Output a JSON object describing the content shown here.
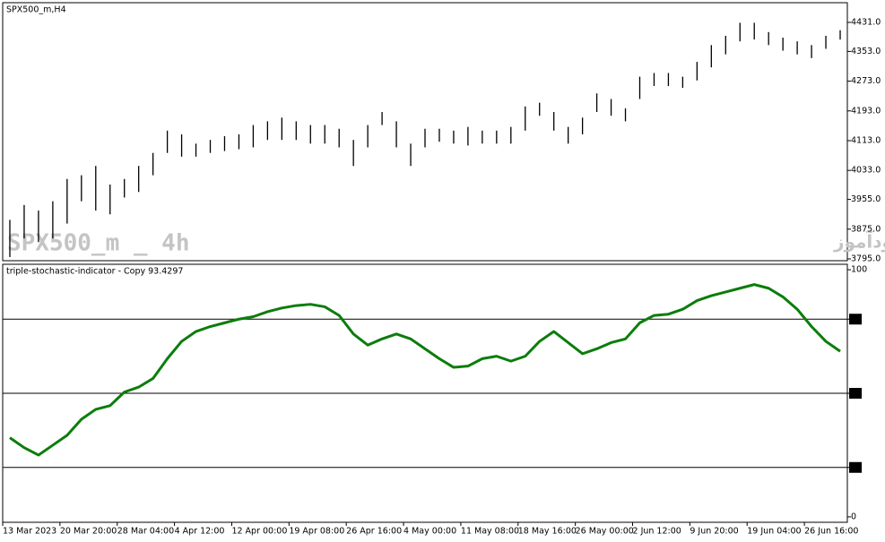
{
  "chart_data": [
    {
      "type": "hilo",
      "title": "SPX500_m,H4",
      "watermark": "SPX500_m _ 4h",
      "watermark_right": "انتشار در سایت سودآموز",
      "color": "#000000",
      "series": [
        {
          "name": "High",
          "values": [
            3900,
            3940,
            3925,
            3950,
            4010,
            4020,
            4045,
            3995,
            4010,
            4045,
            4080,
            4140,
            4130,
            4105,
            4115,
            4125,
            4130,
            4155,
            4165,
            4175,
            4165,
            4155,
            4155,
            4145,
            4115,
            4155,
            4190,
            4165,
            4105,
            4145,
            4145,
            4140,
            4150,
            4140,
            4140,
            4150,
            4205,
            4215,
            4190,
            4150,
            4175,
            4240,
            4225,
            4200,
            4285,
            4295,
            4295,
            4285,
            4325,
            4370,
            4395,
            4430,
            4430,
            4405,
            4390,
            4380,
            4370,
            4395,
            4410
          ]
        },
        {
          "name": "Low",
          "values": [
            3800,
            3850,
            3840,
            3850,
            3890,
            3950,
            3925,
            3915,
            3960,
            3975,
            4020,
            4080,
            4070,
            4070,
            4080,
            4085,
            4090,
            4095,
            4115,
            4115,
            4115,
            4105,
            4105,
            4095,
            4045,
            4095,
            4155,
            4095,
            4045,
            4095,
            4110,
            4105,
            4100,
            4105,
            4105,
            4105,
            4140,
            4180,
            4140,
            4105,
            4130,
            4190,
            4180,
            4165,
            4225,
            4260,
            4260,
            4255,
            4275,
            4310,
            4345,
            4380,
            4385,
            4370,
            4355,
            4345,
            4335,
            4360,
            4385
          ]
        }
      ],
      "xlim": [
        0,
        59
      ],
      "ylim": [
        3790.2,
        4484
      ],
      "yticks": [
        {
          "value": 4431,
          "label": "4431.0"
        },
        {
          "value": 4353,
          "label": "4353.0"
        },
        {
          "value": 4273,
          "label": "4273.0"
        },
        {
          "value": 4193,
          "label": "4193.0"
        },
        {
          "value": 4113,
          "label": "4113.0"
        },
        {
          "value": 4033,
          "label": "4033.0"
        },
        {
          "value": 3955,
          "label": "3955.0"
        },
        {
          "value": 3875,
          "label": "3875.0"
        },
        {
          "value": 3795,
          "label": "3795.0"
        }
      ]
    },
    {
      "type": "line",
      "title": "triple-stochastic-indicator - Copy 93.4297",
      "color": "#0b7d0b",
      "values": [
        32,
        28,
        25,
        29,
        33,
        39.5,
        43.5,
        45,
        50.5,
        52.5,
        56,
        64,
        71,
        75,
        77,
        78.5,
        80,
        81,
        83,
        84.5,
        85.5,
        86,
        85,
        81.5,
        74,
        69.5,
        72,
        74,
        72,
        68,
        64,
        60.5,
        61,
        64,
        65,
        63,
        65,
        71,
        75,
        70.5,
        66,
        68,
        70.5,
        72,
        78.5,
        81.5,
        82,
        84,
        87.5,
        89.5,
        91,
        92.5,
        94,
        92.5,
        89,
        84,
        77,
        71,
        67
      ],
      "xlim": [
        0,
        59
      ],
      "ylim": [
        -2.2,
        102.2
      ],
      "yticks": [
        100,
        80,
        50,
        20,
        0
      ],
      "levels": [
        80,
        50,
        20
      ],
      "xticks": [
        {
          "value": 0,
          "label": "13 Mar 2023"
        },
        {
          "value": 4,
          "label": "20 Mar 20:00"
        },
        {
          "value": 8,
          "label": "28 Mar 04:00"
        },
        {
          "value": 12,
          "label": "4 Apr 12:00"
        },
        {
          "value": 16,
          "label": "12 Apr 00:00"
        },
        {
          "value": 20,
          "label": "19 Apr 08:00"
        },
        {
          "value": 24,
          "label": "26 Apr 16:00"
        },
        {
          "value": 28,
          "label": "4 May 00:00"
        },
        {
          "value": 32,
          "label": "11 May 08:00"
        },
        {
          "value": 36,
          "label": "18 May 16:00"
        },
        {
          "value": 40,
          "label": "26 May 00:00"
        },
        {
          "value": 44,
          "label": "2 Jun 12:00"
        },
        {
          "value": 48,
          "label": "9 Jun 20:00"
        },
        {
          "value": 52,
          "label": "19 Jun 04:00"
        },
        {
          "value": 56,
          "label": "26 Jun 16:00"
        }
      ]
    }
  ]
}
